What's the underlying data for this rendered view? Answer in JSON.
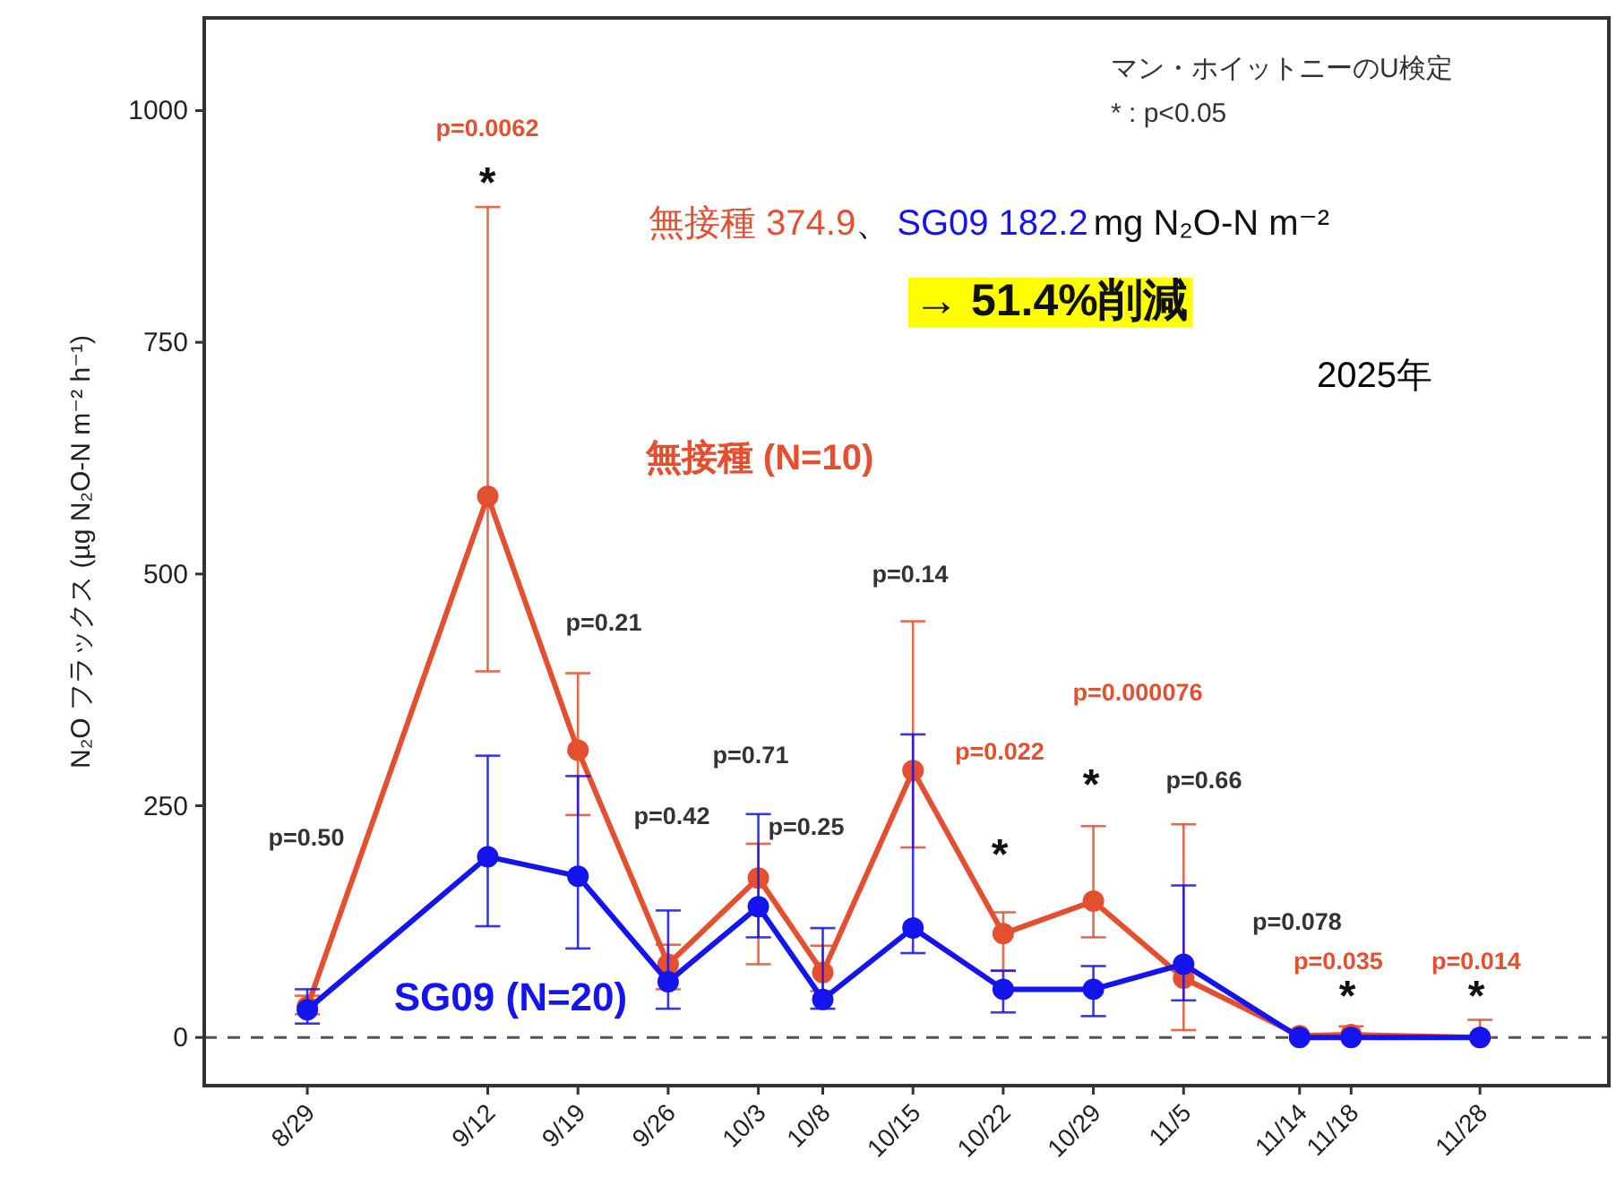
{
  "chart_data": {
    "type": "line",
    "ylabel": "N₂O フラックス (µg N₂O-N m⁻² h⁻¹)",
    "x": [
      "--08-29",
      "--09-12",
      "--09-19",
      "--09-26",
      "--10-03",
      "--10-08",
      "--10-15",
      "--10-22",
      "--10-29",
      "--11-05",
      "--11-14",
      "--11-18",
      "--11-28"
    ],
    "xlim": [
      "--08-21",
      "--12-08"
    ],
    "xticks": [
      {
        "value": "--08-29",
        "label": "8/29"
      },
      {
        "value": "--09-12",
        "label": "9/12"
      },
      {
        "value": "--09-19",
        "label": "9/19"
      },
      {
        "value": "--09-26",
        "label": "9/26"
      },
      {
        "value": "--10-03",
        "label": "10/3"
      },
      {
        "value": "--10-08",
        "label": "10/8"
      },
      {
        "value": "--10-15",
        "label": "10/15"
      },
      {
        "value": "--10-22",
        "label": "10/22"
      },
      {
        "value": "--10-29",
        "label": "10/29"
      },
      {
        "value": "--11-05",
        "label": "11/5"
      },
      {
        "value": "--11-14",
        "label": "11/14"
      },
      {
        "value": "--11-18",
        "label": "11/18"
      },
      {
        "value": "--11-28",
        "label": "11/28"
      }
    ],
    "ylim": [
      -52,
      1100
    ],
    "yticks": [
      0,
      250,
      500,
      750,
      1000
    ],
    "series": [
      {
        "name": "無接種 (N=10)",
        "color": "#e4502f",
        "values": [
          33,
          584,
          310,
          79,
          172,
          70,
          288,
          112,
          147,
          64,
          2,
          3,
          0
        ],
        "errors": [
          [
            25,
            45
          ],
          [
            395,
            896
          ],
          [
            240,
            393
          ],
          [
            52,
            100
          ],
          [
            79,
            209
          ],
          [
            50,
            99
          ],
          [
            205,
            449
          ],
          [
            72,
            135
          ],
          [
            108,
            228
          ],
          [
            8,
            230
          ],
          null,
          [
            0,
            12
          ],
          [
            0,
            19
          ]
        ]
      },
      {
        "name": "SG09 (N=20)",
        "color": "#1414ee",
        "values": [
          30,
          195,
          174,
          60,
          141,
          41,
          118,
          52,
          52,
          79,
          0,
          0,
          0
        ],
        "errors": [
          [
            15,
            52
          ],
          [
            120,
            304
          ],
          [
            96,
            282
          ],
          [
            31,
            137
          ],
          [
            108,
            241
          ],
          [
            31,
            118
          ],
          [
            91,
            327
          ],
          [
            27,
            72
          ],
          [
            23,
            77
          ],
          [
            40,
            164
          ],
          null,
          null,
          null
        ]
      }
    ],
    "ref_lines": [
      {
        "axis": "y",
        "value": 0,
        "color": "#555555",
        "line_style": "dashed"
      }
    ],
    "marker": "circle",
    "line_style": "solid",
    "annotations": [
      "p=0.50",
      "p=0.0062",
      "*",
      "p=0.21",
      "p=0.42",
      "p=0.71",
      "p=0.25",
      "p=0.14",
      "p=0.022",
      "*",
      "p=0.000076",
      "*",
      "p=0.66",
      "p=0.078",
      "p=0.035",
      "*",
      "p=0.014",
      "*",
      "マン・ホイットニーのU検定",
      "* : p<0.05",
      "無接種 374.9",
      "、",
      "SG09 182.2",
      "mg N₂O-N m⁻²",
      "→ 51.4%削減",
      "2025年"
    ]
  }
}
